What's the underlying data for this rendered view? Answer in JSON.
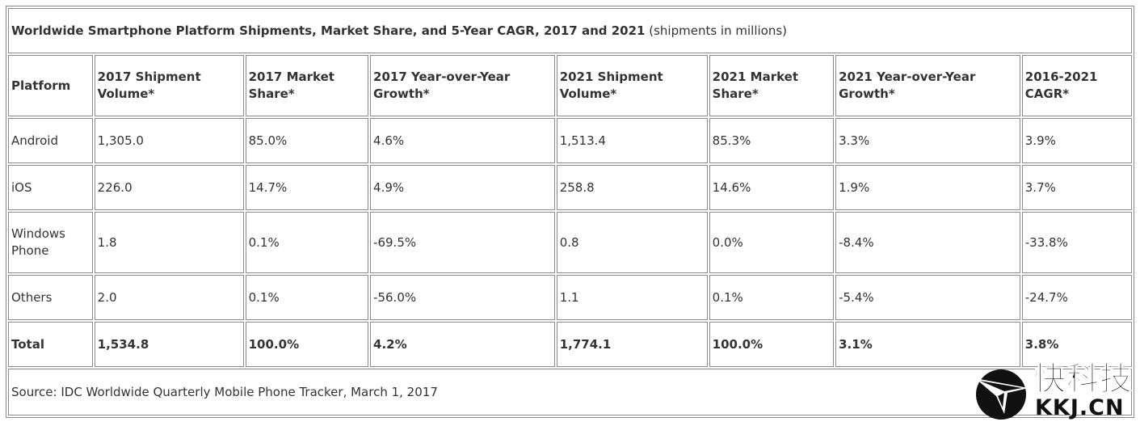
{
  "title": {
    "main": "Worldwide Smartphone Platform Shipments, Market Share, and 5-Year CAGR, 2017 and 2021",
    "unit": "(shipments in millions)"
  },
  "headers": [
    "Platform",
    "2017 Shipment Volume*",
    "2017 Market Share*",
    "2017 Year-over-Year Growth*",
    "2021 Shipment Volume*",
    "2021 Market Share*",
    "2021 Year-over-Year Growth*",
    "2016-2021 CAGR*"
  ],
  "rows": [
    [
      "Android",
      "1,305.0",
      "85.0%",
      "4.6%",
      "1,513.4",
      "85.3%",
      "3.3%",
      "3.9%"
    ],
    [
      "iOS",
      "226.0",
      "14.7%",
      "4.9%",
      "258.8",
      "14.6%",
      "1.9%",
      "3.7%"
    ],
    [
      "Windows Phone",
      "1.8",
      "0.1%",
      "-69.5%",
      "0.8",
      "0.0%",
      "-8.4%",
      "-33.8%"
    ],
    [
      "Others",
      "2.0",
      "0.1%",
      "-56.0%",
      "1.1",
      "0.1%",
      "-5.4%",
      "-24.7%"
    ]
  ],
  "total": [
    "Total",
    "1,534.8",
    "100.0%",
    "4.2%",
    "1,774.1",
    "100.0%",
    "3.1%",
    "3.8%"
  ],
  "source": "Source: IDC Worldwide Quarterly Mobile Phone Tracker, March 1, 2017",
  "watermark": {
    "text_cn": "快科技",
    "text_en": "KKJ.CN"
  }
}
